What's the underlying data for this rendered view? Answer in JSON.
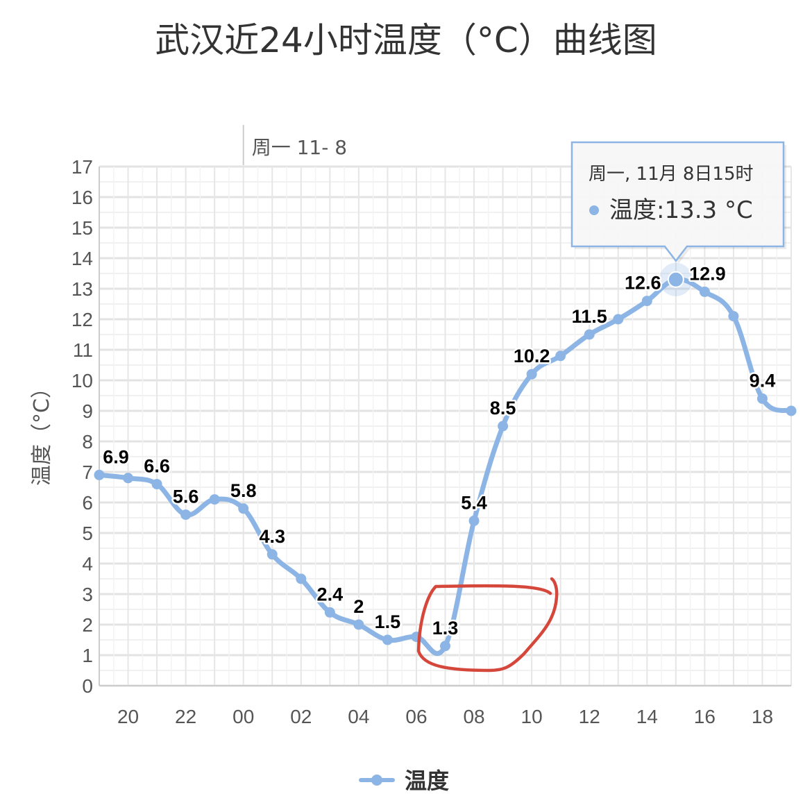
{
  "chart_data": {
    "type": "line",
    "title": "武汉近24小时温度（°C）曲线图",
    "ylabel": "温度（°C）",
    "ylim": [
      0,
      17
    ],
    "yticks": [
      0,
      1,
      2,
      3,
      4,
      5,
      6,
      7,
      8,
      9,
      10,
      11,
      12,
      13,
      14,
      15,
      16,
      17
    ],
    "grid": true,
    "legend_position": "bottom",
    "x_tick_labels": [
      "20",
      "22",
      "00",
      "02",
      "04",
      "06",
      "08",
      "10",
      "12",
      "14",
      "16",
      "18"
    ],
    "day_marker_label": "周一 11- 8",
    "series": [
      {
        "name": "温度",
        "color": "#8cb5e5",
        "x": [
          "19",
          "20",
          "21",
          "22",
          "23",
          "00",
          "01",
          "02",
          "03",
          "04",
          "05",
          "06",
          "07",
          "08",
          "09",
          "10",
          "11",
          "12",
          "13",
          "14",
          "15",
          "16",
          "17",
          "18",
          "19"
        ],
        "values": [
          6.9,
          6.8,
          6.6,
          5.6,
          6.1,
          5.8,
          4.3,
          3.5,
          2.4,
          2.0,
          1.5,
          1.6,
          1.3,
          5.4,
          8.5,
          10.2,
          10.8,
          11.5,
          12.0,
          12.6,
          13.3,
          12.9,
          12.1,
          9.4,
          9.0
        ],
        "data_labels": [
          "6.9",
          null,
          "6.6",
          "5.6",
          null,
          "5.8",
          "4.3",
          null,
          "2.4",
          "2",
          "1.5",
          null,
          "1.3",
          "5.4",
          "8.5",
          "10.2",
          null,
          "11.5",
          null,
          "12.6",
          null,
          "12.9",
          null,
          "9.4",
          null
        ]
      }
    ],
    "tooltip": {
      "header": "周一, 11月 8日15时",
      "series_label": "温度",
      "value_text": "13.3 °C",
      "point_index": 20
    }
  }
}
